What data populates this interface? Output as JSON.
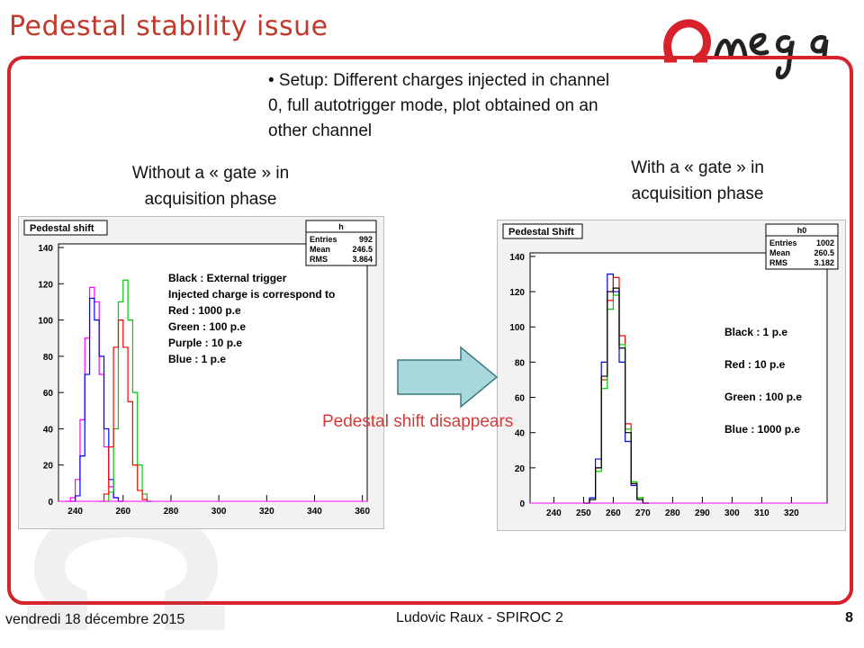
{
  "slide": {
    "title": "Pedestal stability issue",
    "logo_text": "Omega",
    "setup": "• Setup: Different charges injected in channel 0, full autotrigger mode, plot obtained on an other channel",
    "caption_left": "Without a « gate » in acquisition phase",
    "caption_right": "With  a « gate » in acquisition phase",
    "shift_note": "Pedestal shift disappears",
    "footer": {
      "date": "vendredi 18 décembre 2015",
      "author": "Ludovic Raux -  SPIROC 2",
      "page": "8"
    }
  },
  "colors": {
    "title": "#c0392b",
    "frame": "#d7212b",
    "note": "#d23b3b",
    "arrow": "#a8d8dc"
  },
  "chart_data": [
    {
      "type": "line",
      "title": "Pedestal shift",
      "stats": {
        "name": "h",
        "entries_label": "Entries",
        "entries": "992",
        "mean_label": "Mean",
        "mean": "246.5",
        "rms_label": "RMS",
        "rms": "3.864"
      },
      "xlim": [
        233,
        362
      ],
      "ylim": [
        0,
        142
      ],
      "xticks": [
        240,
        260,
        280,
        300,
        320,
        340,
        360
      ],
      "yticks": [
        0,
        20,
        40,
        60,
        80,
        100,
        120,
        140
      ],
      "legend": [
        "Black : External trigger",
        "Injected charge is correspond to",
        "Red    : 1000 p.e",
        "Green  : 100 p.e",
        "Purple : 10 p.e",
        "Blue   : 1 p.e"
      ],
      "series": [
        {
          "color": "#ff00ff",
          "x": [
            236,
            238,
            240,
            242,
            244,
            246,
            248,
            250,
            252,
            254,
            256,
            258
          ],
          "y": [
            0,
            2,
            12,
            45,
            90,
            118,
            110,
            70,
            30,
            8,
            2,
            0
          ]
        },
        {
          "color": "#0000ff",
          "x": [
            238,
            240,
            242,
            244,
            246,
            248,
            250,
            252,
            254,
            256,
            258
          ],
          "y": [
            0,
            3,
            25,
            70,
            112,
            100,
            80,
            40,
            12,
            2,
            0
          ]
        },
        {
          "color": "#00cc00",
          "x": [
            252,
            254,
            256,
            258,
            260,
            262,
            264,
            266,
            268,
            270
          ],
          "y": [
            0,
            5,
            40,
            110,
            122,
            100,
            60,
            20,
            4,
            0
          ]
        },
        {
          "color": "#ff0000",
          "x": [
            250,
            252,
            254,
            256,
            258,
            260,
            262,
            264,
            266,
            268,
            270
          ],
          "y": [
            0,
            4,
            30,
            85,
            100,
            85,
            55,
            20,
            6,
            1,
            0
          ]
        }
      ]
    },
    {
      "type": "line",
      "title": "Pedestal Shift",
      "stats": {
        "name": "h0",
        "entries_label": "Entries",
        "entries": "1002",
        "mean_label": "Mean",
        "mean": "260.5",
        "rms_label": "RMS",
        "rms": "3.182"
      },
      "xlim": [
        232,
        332
      ],
      "ylim": [
        0,
        142
      ],
      "xticks": [
        240,
        250,
        260,
        270,
        280,
        290,
        300,
        310,
        320
      ],
      "yticks": [
        0,
        20,
        40,
        60,
        80,
        100,
        120,
        140
      ],
      "legend": [
        "Black : 1 p.e",
        "Red  : 10 p.e",
        "Green : 100 p.e",
        "Blue : 1000 p.e"
      ],
      "series": [
        {
          "color": "#0000ff",
          "x": [
            250,
            252,
            254,
            256,
            258,
            260,
            262,
            264,
            266,
            268,
            270
          ],
          "y": [
            0,
            3,
            25,
            80,
            130,
            120,
            80,
            35,
            10,
            2,
            0
          ]
        },
        {
          "color": "#ff0000",
          "x": [
            250,
            252,
            254,
            256,
            258,
            260,
            262,
            264,
            266,
            268,
            270
          ],
          "y": [
            0,
            2,
            20,
            70,
            115,
            128,
            95,
            45,
            12,
            3,
            0
          ]
        },
        {
          "color": "#00cc00",
          "x": [
            250,
            252,
            254,
            256,
            258,
            260,
            262,
            264,
            266,
            268,
            270
          ],
          "y": [
            0,
            2,
            18,
            65,
            110,
            118,
            90,
            42,
            12,
            3,
            0
          ]
        },
        {
          "color": "#000000",
          "x": [
            250,
            252,
            254,
            256,
            258,
            260,
            262,
            264,
            266,
            268,
            270
          ],
          "y": [
            0,
            2,
            20,
            72,
            120,
            122,
            88,
            40,
            11,
            2,
            0
          ]
        }
      ]
    }
  ]
}
